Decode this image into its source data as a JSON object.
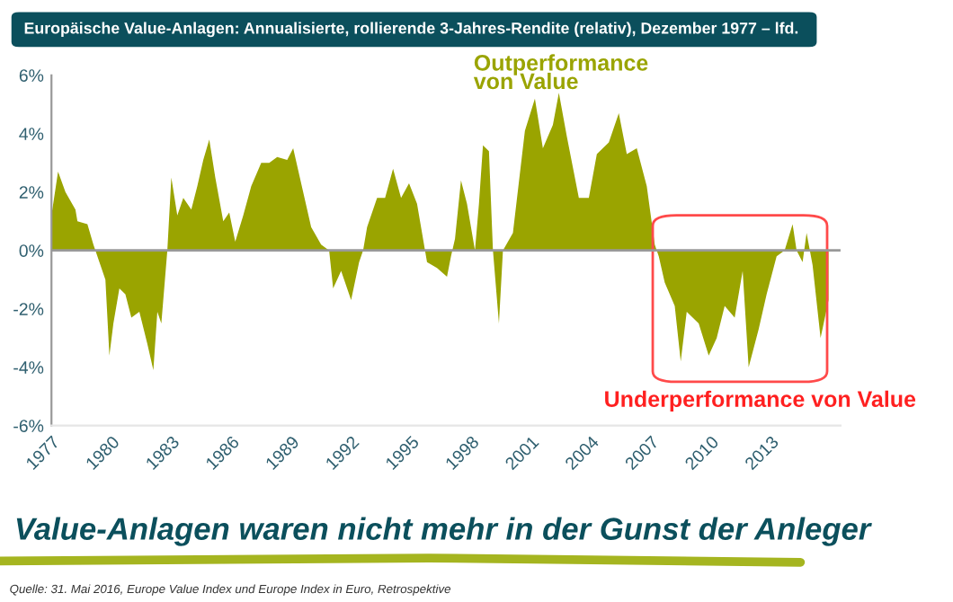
{
  "chart_data": {
    "type": "area",
    "title": "Europäische Value-Anlagen: Annualisierte, rollierende 3-Jahres-Rendite (relativ), Dezember 1977 – lfd.",
    "subtitle": "Value-Anlagen waren nicht mehr in der Gunst der Anleger",
    "annotations": [
      "Outperformance\nvon Value",
      "Underperformance von Value",
      "Quelle: 31. Mai 2016, Europe Value Index und Europe Index in Euro, Retrospektive"
    ],
    "x": [
      1977.0,
      1977.33,
      1977.7,
      1978.2,
      1978.3,
      1978.8,
      1979.1,
      1979.4,
      1979.7,
      1979.9,
      1980.1,
      1980.4,
      1980.7,
      1981.0,
      1981.4,
      1981.8,
      1982.1,
      1982.3,
      1982.5,
      1982.8,
      1983.0,
      1983.3,
      1983.6,
      1984.0,
      1984.3,
      1984.6,
      1984.9,
      1985.2,
      1985.6,
      1985.9,
      1986.2,
      1986.6,
      1987.0,
      1987.5,
      1987.9,
      1988.3,
      1988.8,
      1989.1,
      1989.6,
      1990.0,
      1990.5,
      1990.9,
      1991.1,
      1991.5,
      1992.0,
      1992.4,
      1992.6,
      1992.8,
      1993.3,
      1993.7,
      1994.1,
      1994.5,
      1994.9,
      1995.3,
      1995.6,
      1995.8,
      1996.3,
      1996.8,
      1997.0,
      1997.2,
      1997.5,
      1997.8,
      1998.2,
      1998.4,
      1998.6,
      1998.9,
      1999.1,
      1999.4,
      1999.6,
      2000.1,
      2000.7,
      2001.2,
      2001.6,
      2002.1,
      2002.4,
      2002.8,
      2003.4,
      2003.9,
      2004.3,
      2004.9,
      2005.4,
      2005.8,
      2006.3,
      2006.8,
      2007.2,
      2007.4,
      2007.7,
      2008.2,
      2008.5,
      2008.8,
      2009.4,
      2009.9,
      2010.3,
      2010.7,
      2011.2,
      2011.6,
      2011.9,
      2012.4,
      2012.8,
      2013.3,
      2013.7,
      2014.1,
      2014.3,
      2014.6,
      2014.8,
      2015.1,
      2015.5,
      2015.9
    ],
    "series": [
      {
        "color": "#9aa400",
        "values": [
          1.2,
          2.7,
          2.0,
          1.4,
          1.0,
          0.9,
          0.2,
          -0.4,
          -1.0,
          -3.6,
          -2.5,
          -1.3,
          -1.5,
          -2.3,
          -2.1,
          -3.2,
          -4.1,
          -2.1,
          -2.5,
          0.0,
          2.5,
          1.2,
          1.8,
          1.4,
          2.2,
          3.1,
          3.8,
          2.5,
          1.0,
          1.3,
          0.3,
          1.2,
          2.2,
          3.0,
          3.0,
          3.2,
          3.1,
          3.5,
          2.0,
          0.8,
          0.2,
          0.0,
          -1.3,
          -0.7,
          -1.7,
          -0.4,
          0.0,
          0.8,
          1.8,
          1.8,
          2.8,
          1.8,
          2.3,
          1.6,
          0.4,
          -0.4,
          -0.6,
          -0.9,
          -0.2,
          0.4,
          2.4,
          1.6,
          0.0,
          1.6,
          3.6,
          3.4,
          0.0,
          -2.5,
          0.0,
          0.6,
          4.1,
          5.2,
          3.5,
          4.3,
          5.4,
          3.9,
          1.8,
          1.8,
          3.3,
          3.7,
          4.7,
          3.3,
          3.5,
          2.2,
          0.2,
          -0.2,
          -1.1,
          -1.9,
          -3.8,
          -2.1,
          -2.5,
          -3.6,
          -3.0,
          -1.9,
          -2.3,
          -0.7,
          -4.0,
          -2.7,
          -1.5,
          -0.2,
          0.0,
          0.9,
          0.0,
          -0.4,
          0.6,
          -0.5,
          -3.0,
          -1.7
        ]
      }
    ],
    "xlim": [
      1977,
      2016.5
    ],
    "xticks": [
      1977,
      1980,
      1983,
      1986,
      1989,
      1992,
      1995,
      1998,
      2001,
      2004,
      2007,
      2010,
      2013
    ],
    "ylim": [
      -6,
      6
    ],
    "yticks": [
      {
        "value": -6,
        "label": "-6%"
      },
      {
        "value": -4,
        "label": "-4%"
      },
      {
        "value": -2,
        "label": "-2%"
      },
      {
        "value": 0,
        "label": "0%"
      },
      {
        "value": 2,
        "label": "2%"
      },
      {
        "value": 4,
        "label": "4%"
      },
      {
        "value": 6,
        "label": "6%"
      }
    ],
    "ref_lines": [
      {
        "axis": "y",
        "value": 0,
        "color": "#999999"
      }
    ],
    "grid": false,
    "legend": false
  }
}
